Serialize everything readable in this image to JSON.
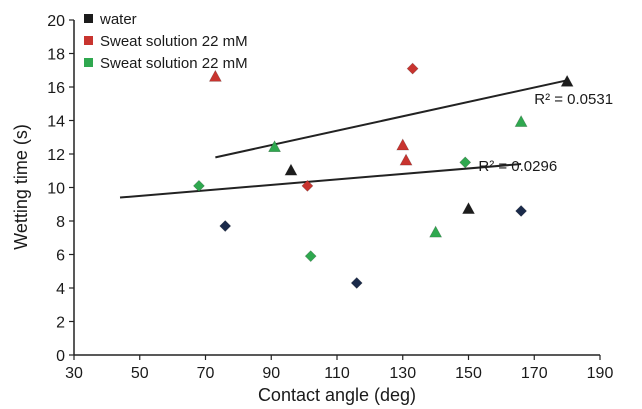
{
  "chart_data": {
    "type": "scatter",
    "title": "",
    "xlabel": "Contact angle (deg)",
    "ylabel": "Wetting time (s)",
    "xlim": [
      30,
      190
    ],
    "ylim": [
      0,
      20
    ],
    "xticks": [
      "30",
      "50",
      "70",
      "90",
      "110",
      "130",
      "150",
      "170",
      "190"
    ],
    "yticks": [
      "0",
      "2",
      "4",
      "6",
      "8",
      "10",
      "12",
      "14",
      "16",
      "18",
      "20"
    ],
    "grid": false,
    "legend": {
      "position": "top-left",
      "entries": [
        {
          "label": "water",
          "color": "#1c1c1c"
        },
        {
          "label": "Sweat solution 22 mM",
          "color": "#c8342f"
        },
        {
          "label": "Sweat solution 22 mM",
          "color": "#2fa84f"
        }
      ]
    },
    "series": [
      {
        "color": "#1c1c1c",
        "points": [
          {
            "x": 76,
            "y": 7.7,
            "marker": "diamond",
            "color": "#1a2a4a"
          },
          {
            "x": 116,
            "y": 4.3,
            "marker": "diamond",
            "color": "#1a2a4a"
          },
          {
            "x": 166,
            "y": 8.6,
            "marker": "diamond",
            "color": "#1a2a4a"
          },
          {
            "x": 96,
            "y": 11.0,
            "marker": "triangle"
          },
          {
            "x": 150,
            "y": 8.7,
            "marker": "triangle"
          },
          {
            "x": 180,
            "y": 16.3,
            "marker": "triangle"
          }
        ]
      },
      {
        "color": "#c8342f",
        "points": [
          {
            "x": 133,
            "y": 17.1,
            "marker": "diamond"
          },
          {
            "x": 101,
            "y": 10.1,
            "marker": "diamond"
          },
          {
            "x": 73,
            "y": 16.6,
            "marker": "triangle"
          },
          {
            "x": 130,
            "y": 12.5,
            "marker": "triangle"
          },
          {
            "x": 131,
            "y": 11.6,
            "marker": "triangle"
          }
        ]
      },
      {
        "color": "#2fa84f",
        "points": [
          {
            "x": 68,
            "y": 10.1,
            "marker": "diamond"
          },
          {
            "x": 102,
            "y": 5.9,
            "marker": "diamond"
          },
          {
            "x": 149,
            "y": 11.5,
            "marker": "diamond"
          },
          {
            "x": 91,
            "y": 12.4,
            "marker": "triangle"
          },
          {
            "x": 140,
            "y": 7.3,
            "marker": "triangle"
          },
          {
            "x": 166,
            "y": 13.9,
            "marker": "triangle"
          }
        ]
      }
    ],
    "trendlines": [
      {
        "x1": 73,
        "y1": 11.8,
        "x2": 180,
        "y2": 16.4,
        "label": "R² = 0.0531",
        "label_x": 170,
        "label_y": 15.0
      },
      {
        "x1": 44,
        "y1": 9.4,
        "x2": 166,
        "y2": 11.4,
        "label": "R² = 0.0296",
        "label_x": 153,
        "label_y": 11.0
      }
    ]
  }
}
